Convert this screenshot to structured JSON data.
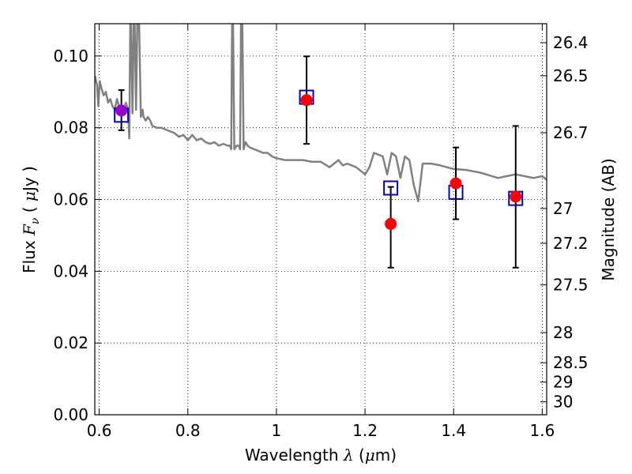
{
  "chart_data": {
    "type": "scatter",
    "title": "",
    "xlabel": {
      "prefix": "Wavelength",
      "symbol": "λ",
      "unit_open": "(",
      "unit_mu": "μ",
      "unit_rest": "m)"
    },
    "ylabel": {
      "prefix": "Flux",
      "symbol": "F",
      "subscript": "ν",
      "unit_open": "(",
      "unit_mu": "μ",
      "unit_rest": "Jy )"
    },
    "y2label": "Magnitude (AB)",
    "xlim": [
      0.59,
      1.61
    ],
    "ylim": [
      0.0,
      0.109
    ],
    "grid": true,
    "x_ticks": [
      {
        "value": 0.6,
        "label": "0.6"
      },
      {
        "value": 0.8,
        "label": "0.8"
      },
      {
        "value": 1.0,
        "label": "1"
      },
      {
        "value": 1.2,
        "label": "1.2"
      },
      {
        "value": 1.4,
        "label": "1.4"
      },
      {
        "value": 1.6,
        "label": "1.6"
      }
    ],
    "y_ticks": [
      {
        "value": 0.0,
        "label": "0.00"
      },
      {
        "value": 0.02,
        "label": "0.02"
      },
      {
        "value": 0.04,
        "label": "0.04"
      },
      {
        "value": 0.06,
        "label": "0.06"
      },
      {
        "value": 0.08,
        "label": "0.08"
      },
      {
        "value": 0.1,
        "label": "0.10"
      }
    ],
    "y2_ticks": [
      {
        "flux": 0.1037,
        "label": "26.4"
      },
      {
        "flux": 0.0945,
        "label": "26.5"
      },
      {
        "flux": 0.0786,
        "label": "26.7"
      },
      {
        "flux": 0.0575,
        "label": "27"
      },
      {
        "flux": 0.0478,
        "label": "27.2"
      },
      {
        "flux": 0.0362,
        "label": "27.5"
      },
      {
        "flux": 0.0229,
        "label": "28"
      },
      {
        "flux": 0.0145,
        "label": "28.5"
      },
      {
        "flux": 0.0091,
        "label": "29"
      },
      {
        "flux": 0.0036,
        "label": "30"
      }
    ],
    "model_spectrum": {
      "color": "#808080",
      "x": [
        0.59,
        0.595,
        0.598,
        0.601,
        0.605,
        0.61,
        0.615,
        0.62,
        0.625,
        0.63,
        0.635,
        0.64,
        0.645,
        0.65,
        0.655,
        0.66,
        0.665,
        0.668,
        0.67,
        0.672,
        0.675,
        0.678,
        0.68,
        0.683,
        0.686,
        0.69,
        0.694,
        0.698,
        0.7,
        0.705,
        0.71,
        0.715,
        0.72,
        0.73,
        0.74,
        0.75,
        0.76,
        0.77,
        0.78,
        0.79,
        0.8,
        0.81,
        0.82,
        0.83,
        0.84,
        0.85,
        0.86,
        0.87,
        0.88,
        0.89,
        0.895,
        0.898,
        0.9,
        0.902,
        0.905,
        0.91,
        0.915,
        0.918,
        0.92,
        0.923,
        0.926,
        0.93,
        0.935,
        0.94,
        0.95,
        0.96,
        0.97,
        0.98,
        0.99,
        1.0,
        1.02,
        1.04,
        1.06,
        1.08,
        1.1,
        1.12,
        1.14,
        1.15,
        1.16,
        1.18,
        1.2,
        1.21,
        1.22,
        1.24,
        1.25,
        1.26,
        1.27,
        1.28,
        1.29,
        1.3,
        1.31,
        1.32,
        1.33,
        1.35,
        1.37,
        1.4,
        1.43,
        1.46,
        1.5,
        1.54,
        1.56,
        1.58,
        1.6,
        1.61
      ],
      "y": [
        0.0945,
        0.092,
        0.086,
        0.093,
        0.091,
        0.089,
        0.09,
        0.087,
        0.088,
        0.086,
        0.085,
        0.088,
        0.086,
        0.085,
        0.084,
        0.087,
        0.085,
        0.077,
        0.109,
        0.109,
        0.084,
        0.109,
        0.109,
        0.085,
        0.109,
        0.109,
        0.083,
        0.085,
        0.083,
        0.082,
        0.083,
        0.082,
        0.0805,
        0.08,
        0.08,
        0.0795,
        0.079,
        0.0785,
        0.0775,
        0.078,
        0.0765,
        0.078,
        0.0765,
        0.077,
        0.076,
        0.0755,
        0.076,
        0.075,
        0.0755,
        0.075,
        0.075,
        0.074,
        0.109,
        0.109,
        0.074,
        0.075,
        0.075,
        0.074,
        0.109,
        0.109,
        0.074,
        0.076,
        0.075,
        0.0745,
        0.074,
        0.0735,
        0.073,
        0.073,
        0.072,
        0.0715,
        0.071,
        0.071,
        0.071,
        0.0705,
        0.0705,
        0.069,
        0.071,
        0.0695,
        0.07,
        0.069,
        0.067,
        0.069,
        0.073,
        0.072,
        0.067,
        0.073,
        0.072,
        0.066,
        0.072,
        0.071,
        0.064,
        0.0595,
        0.07,
        0.07,
        0.0695,
        0.0685,
        0.0682,
        0.0675,
        0.066,
        0.067,
        0.0665,
        0.066,
        0.0665,
        0.0655
      ]
    },
    "series": [
      {
        "marker": "open-square",
        "color": "#0000cc",
        "points": [
          {
            "x": 0.65,
            "y": 0.0835
          },
          {
            "x": 1.068,
            "y": 0.0885
          },
          {
            "x": 1.258,
            "y": 0.0632
          },
          {
            "x": 1.405,
            "y": 0.062
          },
          {
            "x": 1.54,
            "y": 0.0603
          }
        ]
      },
      {
        "marker": "filled-circle",
        "color": "#ff0000",
        "points": [
          {
            "x": 0.65,
            "y": 0.0848,
            "yerr_low": 0.0793,
            "yerr_high": 0.0905,
            "color": "#9900cc"
          },
          {
            "x": 1.068,
            "y": 0.0877,
            "yerr_low": 0.0755,
            "yerr_high": 0.0999
          },
          {
            "x": 1.258,
            "y": 0.0532,
            "yerr_low": 0.041,
            "yerr_high": 0.0635
          },
          {
            "x": 1.405,
            "y": 0.0645,
            "yerr_low": 0.0545,
            "yerr_high": 0.0745
          },
          {
            "x": 1.54,
            "y": 0.0608,
            "yerr_low": 0.041,
            "yerr_high": 0.0805
          }
        ]
      }
    ]
  }
}
